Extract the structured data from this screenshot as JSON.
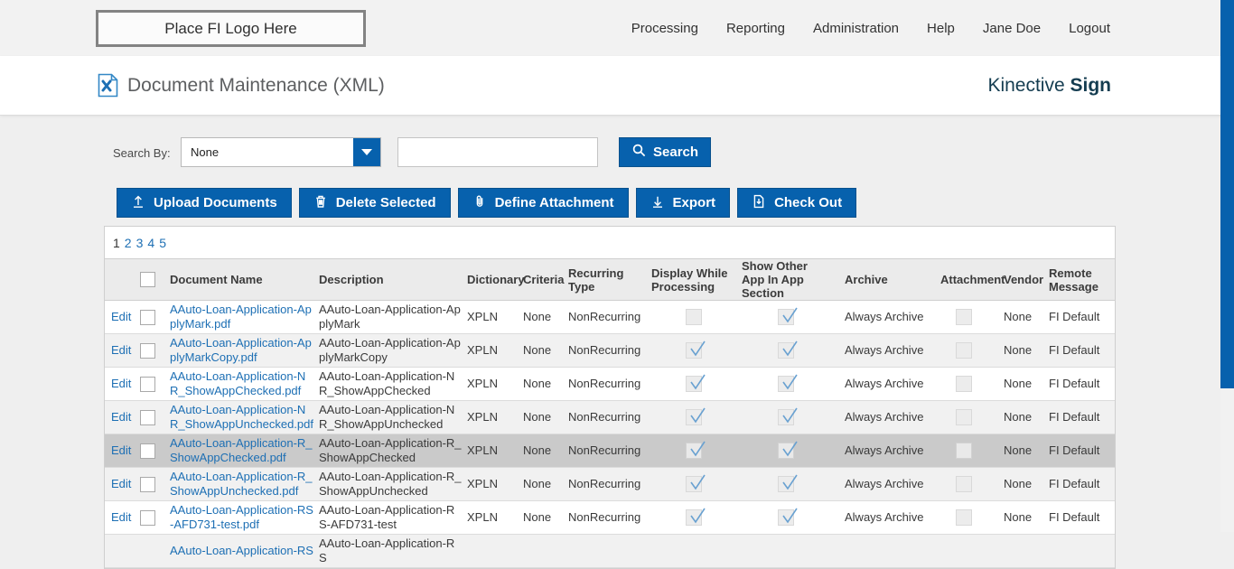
{
  "colors": {
    "accent_blue": "#0761ad",
    "link_blue": "#1d6fb4",
    "brand_navy": "#143c50",
    "selected_row": "#cacaca",
    "alt_row": "#f1f1f1",
    "header_row": "#ebebeb",
    "check_blue": "#69a1d1"
  },
  "navbar": {
    "logo_placeholder": "Place FI Logo Here",
    "items": [
      "Processing",
      "Reporting",
      "Administration",
      "Help",
      "Jane Doe",
      "Logout"
    ]
  },
  "page_header": {
    "icon": "xml-document-icon",
    "title": "Document Maintenance (XML)",
    "brand_regular": "Kinective",
    "brand_bold": "Sign"
  },
  "search": {
    "label": "Search By:",
    "dropdown_value": "None",
    "input_value": "",
    "button_label": "Search",
    "button_icon": "search-icon"
  },
  "toolbar": {
    "buttons": [
      {
        "icon": "upload-icon",
        "label": "Upload Documents"
      },
      {
        "icon": "trash-icon",
        "label": "Delete Selected"
      },
      {
        "icon": "paperclip-icon",
        "label": "Define Attachment"
      },
      {
        "icon": "download-icon",
        "label": "Export"
      },
      {
        "icon": "checkout-icon",
        "label": "Check Out"
      }
    ]
  },
  "pagination": {
    "current": "1",
    "pages": [
      "1",
      "2",
      "3",
      "4",
      "5"
    ]
  },
  "table": {
    "edit_label": "Edit",
    "columns": [
      "",
      "",
      "Document Name",
      "Description",
      "Dictionary",
      "Criteria",
      "Recurring Type",
      "Display While Processing",
      "Show Other App In App Section",
      "Archive",
      "Attachment",
      "Vendor",
      "Remote Message"
    ],
    "rows": [
      {
        "document_name": "AAuto-Loan-Application-ApplyMark.pdf",
        "description": "AAuto-Loan-Application-ApplyMark",
        "dictionary": "XPLN",
        "criteria": "None",
        "recurring_type": "NonRecurring",
        "display_while_processing": false,
        "show_other_app_in_app_section": true,
        "archive": "Always Archive",
        "attachment": false,
        "vendor": "None",
        "remote_message": "FI Default",
        "selected": false,
        "partial": false
      },
      {
        "document_name": "AAuto-Loan-Application-ApplyMarkCopy.pdf",
        "description": "AAuto-Loan-Application-ApplyMarkCopy",
        "dictionary": "XPLN",
        "criteria": "None",
        "recurring_type": "NonRecurring",
        "display_while_processing": true,
        "show_other_app_in_app_section": true,
        "archive": "Always Archive",
        "attachment": false,
        "vendor": "None",
        "remote_message": "FI Default",
        "selected": false,
        "partial": false
      },
      {
        "document_name": "AAuto-Loan-Application-NR_ShowAppChecked.pdf",
        "description": "AAuto-Loan-Application-NR_ShowAppChecked",
        "dictionary": "XPLN",
        "criteria": "None",
        "recurring_type": "NonRecurring",
        "display_while_processing": true,
        "show_other_app_in_app_section": true,
        "archive": "Always Archive",
        "attachment": false,
        "vendor": "None",
        "remote_message": "FI Default",
        "selected": false,
        "partial": false
      },
      {
        "document_name": "AAuto-Loan-Application-NR_ShowAppUnchecked.pdf",
        "description": "AAuto-Loan-Application-NR_ShowAppUnchecked",
        "dictionary": "XPLN",
        "criteria": "None",
        "recurring_type": "NonRecurring",
        "display_while_processing": true,
        "show_other_app_in_app_section": true,
        "archive": "Always Archive",
        "attachment": false,
        "vendor": "None",
        "remote_message": "FI Default",
        "selected": false,
        "partial": false
      },
      {
        "document_name": "AAuto-Loan-Application-R_ShowAppChecked.pdf",
        "description": "AAuto-Loan-Application-R_ShowAppChecked",
        "dictionary": "XPLN",
        "criteria": "None",
        "recurring_type": "NonRecurring",
        "display_while_processing": true,
        "show_other_app_in_app_section": true,
        "archive": "Always Archive",
        "attachment": false,
        "vendor": "None",
        "remote_message": "FI Default",
        "selected": true,
        "partial": false
      },
      {
        "document_name": "AAuto-Loan-Application-R_ShowAppUnchecked.pdf",
        "description": "AAuto-Loan-Application-R_ShowAppUnchecked",
        "dictionary": "XPLN",
        "criteria": "None",
        "recurring_type": "NonRecurring",
        "display_while_processing": true,
        "show_other_app_in_app_section": true,
        "archive": "Always Archive",
        "attachment": false,
        "vendor": "None",
        "remote_message": "FI Default",
        "selected": false,
        "partial": false
      },
      {
        "document_name": "AAuto-Loan-Application-RS-AFD731-test.pdf",
        "description": "AAuto-Loan-Application-RS-AFD731-test",
        "dictionary": "XPLN",
        "criteria": "None",
        "recurring_type": "NonRecurring",
        "display_while_processing": true,
        "show_other_app_in_app_section": true,
        "archive": "Always Archive",
        "attachment": false,
        "vendor": "None",
        "remote_message": "FI Default",
        "selected": false,
        "partial": false
      },
      {
        "document_name": "AAuto-Loan-Application-RS",
        "description": "AAuto-Loan-Application-RS",
        "dictionary": null,
        "criteria": null,
        "recurring_type": null,
        "display_while_processing": null,
        "show_other_app_in_app_section": null,
        "archive": null,
        "attachment": null,
        "vendor": null,
        "remote_message": null,
        "selected": false,
        "partial": true
      }
    ]
  }
}
